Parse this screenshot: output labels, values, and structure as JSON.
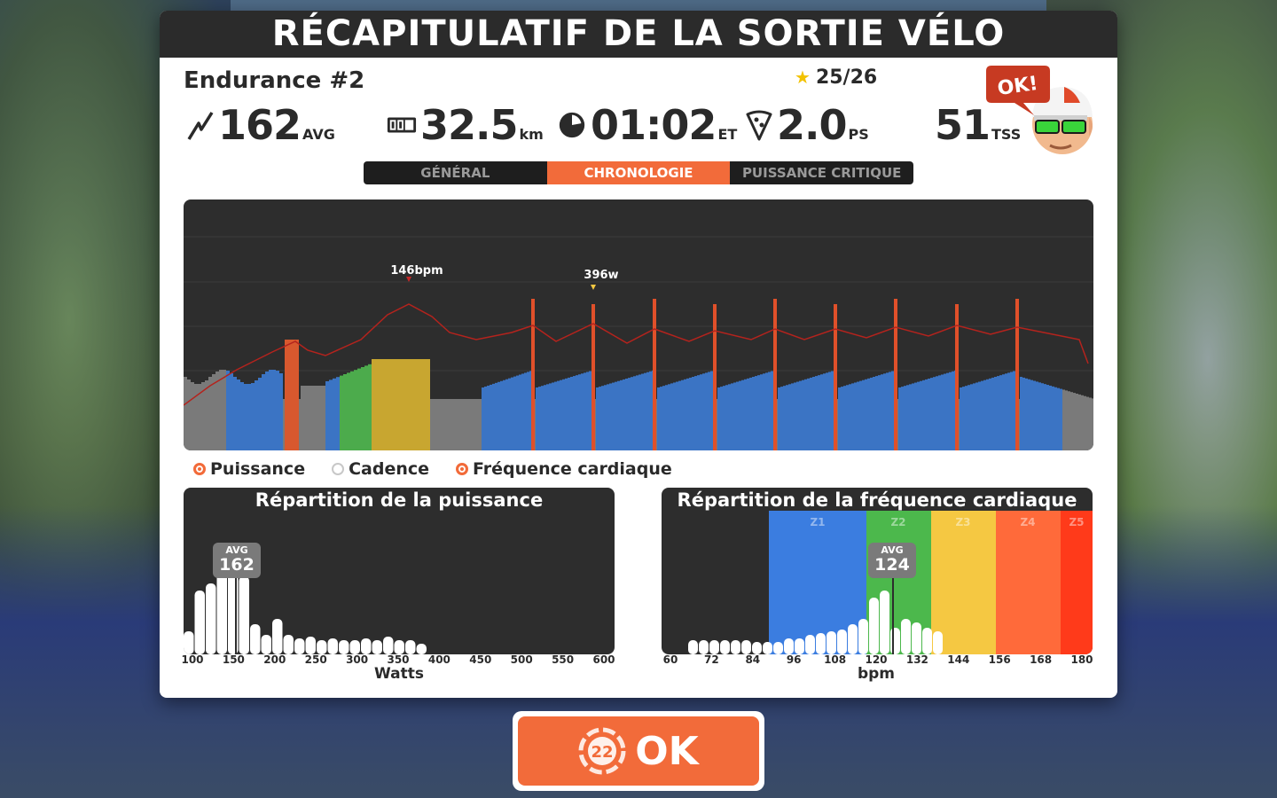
{
  "header": {
    "title": "RÉCAPITULATIF DE LA SORTIE VÉLO"
  },
  "ride": {
    "name": "Endurance #2",
    "stars": "25/26"
  },
  "stats": {
    "power": {
      "value": "162",
      "unit": "AVG"
    },
    "distance": {
      "value": "32.5",
      "unit": "km"
    },
    "time": {
      "value": "01:02",
      "unit": "ET"
    },
    "pizza": {
      "value": "2.0",
      "unit": "PS"
    },
    "tss": {
      "value": "51",
      "unit": "TSS"
    }
  },
  "avatar": {
    "bubble": "OK!"
  },
  "tabs": [
    {
      "label": "GÉNÉRAL",
      "active": false
    },
    {
      "label": "CHRONOLOGIE",
      "active": true
    },
    {
      "label": "PUISSANCE CRITIQUE",
      "active": false
    }
  ],
  "timeline": {
    "hr_peak_label": "146bpm",
    "power_peak_label": "396w",
    "legend": {
      "power": "Puissance",
      "cadence": "Cadence",
      "heart_rate": "Fréquence cardiaque"
    }
  },
  "power_dist": {
    "title": "Répartition de la puissance",
    "avg_label": "AVG",
    "avg_value": "162",
    "xlabel": "Watts",
    "ticks": [
      "100",
      "150",
      "200",
      "250",
      "300",
      "350",
      "400",
      "450",
      "500",
      "550",
      "600"
    ]
  },
  "hr_dist": {
    "title": "Répartition de la fréquence cardiaque",
    "avg_label": "AVG",
    "avg_value": "124",
    "xlabel": "bpm",
    "zones": [
      "Z1",
      "Z2",
      "Z3",
      "Z4",
      "Z5"
    ],
    "ticks": [
      "60",
      "72",
      "84",
      "96",
      "108",
      "120",
      "132",
      "144",
      "156",
      "168",
      "180"
    ]
  },
  "ok_button": {
    "label": "OK",
    "badge": "22"
  },
  "colors": {
    "accent": "#f26b3a",
    "z1": "#3b7de0",
    "z2": "#4cb84c",
    "z3": "#f5c842",
    "z4": "#ff6a3a",
    "z5": "#ff3a1a"
  }
}
